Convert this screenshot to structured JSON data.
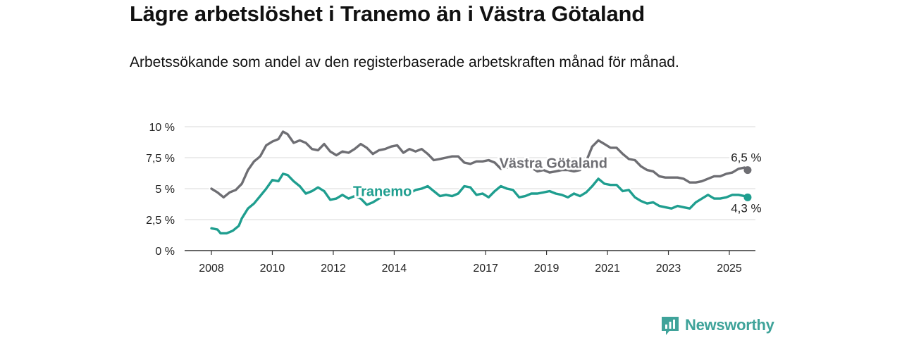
{
  "header": {
    "title": "Lägre arbetslöshet i Tranemo än i Västra Götaland",
    "subtitle": "Arbetssökande som andel av den registerbaserade arbetskraften månad för månad."
  },
  "logo": {
    "text": "Newsworthy",
    "icon": "newsworthy-logo-icon",
    "color": "#3fa39a"
  },
  "chart_data": {
    "type": "line",
    "title": "Lägre arbetslöshet i Tranemo än i Västra Götaland",
    "subtitle": "Arbetssökande som andel av den registerbaserade arbetskraften månad för månad.",
    "ylim": [
      0,
      10
    ],
    "yticks": [
      0,
      2.5,
      5,
      7.5,
      10
    ],
    "ytick_labels": [
      "0 %",
      "2,5 %",
      "5 %",
      "7,5 %",
      "10 %"
    ],
    "xlim": [
      2007.6,
      2025.9
    ],
    "xticks": [
      2008,
      2010,
      2012,
      2014,
      2017,
      2019,
      2021,
      2023,
      2025
    ],
    "xtick_labels": [
      "2008",
      "2010",
      "2012",
      "2014",
      "2017",
      "2019",
      "2021",
      "2023",
      "2025"
    ],
    "grid": "horizontal",
    "series": [
      {
        "name": "Västra Götaland",
        "color": "#6e6e73",
        "end_label": "6,5 %",
        "end_value": 6.5,
        "points": [
          [
            2008.0,
            5.0
          ],
          [
            2008.2,
            4.7
          ],
          [
            2008.4,
            4.3
          ],
          [
            2008.6,
            4.7
          ],
          [
            2008.8,
            4.9
          ],
          [
            2009.0,
            5.4
          ],
          [
            2009.2,
            6.5
          ],
          [
            2009.4,
            7.2
          ],
          [
            2009.6,
            7.6
          ],
          [
            2009.8,
            8.5
          ],
          [
            2010.0,
            8.8
          ],
          [
            2010.2,
            9.0
          ],
          [
            2010.35,
            9.6
          ],
          [
            2010.5,
            9.4
          ],
          [
            2010.7,
            8.7
          ],
          [
            2010.9,
            8.9
          ],
          [
            2011.1,
            8.7
          ],
          [
            2011.3,
            8.2
          ],
          [
            2011.5,
            8.1
          ],
          [
            2011.7,
            8.6
          ],
          [
            2011.9,
            8.0
          ],
          [
            2012.1,
            7.7
          ],
          [
            2012.3,
            8.0
          ],
          [
            2012.5,
            7.9
          ],
          [
            2012.7,
            8.2
          ],
          [
            2012.9,
            8.6
          ],
          [
            2013.1,
            8.3
          ],
          [
            2013.3,
            7.8
          ],
          [
            2013.5,
            8.1
          ],
          [
            2013.7,
            8.2
          ],
          [
            2013.9,
            8.4
          ],
          [
            2014.1,
            8.5
          ],
          [
            2014.3,
            7.9
          ],
          [
            2014.5,
            8.2
          ],
          [
            2014.7,
            8.0
          ],
          [
            2014.9,
            8.2
          ],
          [
            2015.1,
            7.8
          ],
          [
            2015.3,
            7.3
          ],
          [
            2015.5,
            7.4
          ],
          [
            2015.7,
            7.5
          ],
          [
            2015.9,
            7.6
          ],
          [
            2016.1,
            7.6
          ],
          [
            2016.3,
            7.1
          ],
          [
            2016.5,
            7.0
          ],
          [
            2016.7,
            7.2
          ],
          [
            2016.9,
            7.2
          ],
          [
            2017.1,
            7.3
          ],
          [
            2017.3,
            7.1
          ],
          [
            2017.5,
            6.6
          ],
          [
            2017.7,
            6.7
          ],
          [
            2017.9,
            6.8
          ],
          [
            2018.1,
            6.9
          ],
          [
            2018.3,
            7.0
          ],
          [
            2018.5,
            6.7
          ],
          [
            2018.7,
            6.4
          ],
          [
            2018.9,
            6.5
          ],
          [
            2019.1,
            6.3
          ],
          [
            2019.3,
            6.4
          ],
          [
            2019.5,
            6.5
          ],
          [
            2019.7,
            6.5
          ],
          [
            2019.9,
            6.4
          ],
          [
            2020.1,
            6.5
          ],
          [
            2020.3,
            7.2
          ],
          [
            2020.5,
            8.4
          ],
          [
            2020.7,
            8.9
          ],
          [
            2020.9,
            8.6
          ],
          [
            2021.1,
            8.3
          ],
          [
            2021.3,
            8.3
          ],
          [
            2021.5,
            7.8
          ],
          [
            2021.7,
            7.4
          ],
          [
            2021.9,
            7.3
          ],
          [
            2022.1,
            6.8
          ],
          [
            2022.3,
            6.5
          ],
          [
            2022.5,
            6.4
          ],
          [
            2022.7,
            6.0
          ],
          [
            2022.9,
            5.9
          ],
          [
            2023.1,
            5.9
          ],
          [
            2023.3,
            5.9
          ],
          [
            2023.5,
            5.8
          ],
          [
            2023.7,
            5.5
          ],
          [
            2023.9,
            5.5
          ],
          [
            2024.1,
            5.6
          ],
          [
            2024.3,
            5.8
          ],
          [
            2024.5,
            6.0
          ],
          [
            2024.7,
            6.0
          ],
          [
            2024.9,
            6.2
          ],
          [
            2025.1,
            6.3
          ],
          [
            2025.3,
            6.6
          ],
          [
            2025.5,
            6.7
          ],
          [
            2025.6,
            6.5
          ]
        ]
      },
      {
        "name": "Tranemo",
        "color": "#1f9e8f",
        "end_label": "4,3 %",
        "end_value": 4.3,
        "points": [
          [
            2008.0,
            1.8
          ],
          [
            2008.2,
            1.7
          ],
          [
            2008.3,
            1.4
          ],
          [
            2008.5,
            1.4
          ],
          [
            2008.7,
            1.6
          ],
          [
            2008.9,
            2.0
          ],
          [
            2009.0,
            2.6
          ],
          [
            2009.2,
            3.4
          ],
          [
            2009.4,
            3.8
          ],
          [
            2009.6,
            4.4
          ],
          [
            2009.8,
            5.0
          ],
          [
            2010.0,
            5.7
          ],
          [
            2010.2,
            5.6
          ],
          [
            2010.35,
            6.2
          ],
          [
            2010.5,
            6.1
          ],
          [
            2010.7,
            5.6
          ],
          [
            2010.9,
            5.2
          ],
          [
            2011.1,
            4.6
          ],
          [
            2011.3,
            4.8
          ],
          [
            2011.5,
            5.1
          ],
          [
            2011.7,
            4.8
          ],
          [
            2011.9,
            4.1
          ],
          [
            2012.1,
            4.2
          ],
          [
            2012.3,
            4.5
          ],
          [
            2012.5,
            4.2
          ],
          [
            2012.7,
            4.4
          ],
          [
            2012.9,
            4.2
          ],
          [
            2013.1,
            3.7
          ],
          [
            2013.3,
            3.9
          ],
          [
            2013.5,
            4.2
          ],
          [
            2013.7,
            4.5
          ],
          [
            2013.9,
            4.6
          ],
          [
            2014.1,
            4.7
          ],
          [
            2014.3,
            4.4
          ],
          [
            2014.5,
            4.6
          ],
          [
            2014.7,
            4.9
          ],
          [
            2014.9,
            5.0
          ],
          [
            2015.1,
            5.2
          ],
          [
            2015.3,
            4.8
          ],
          [
            2015.5,
            4.4
          ],
          [
            2015.7,
            4.5
          ],
          [
            2015.9,
            4.4
          ],
          [
            2016.1,
            4.6
          ],
          [
            2016.3,
            5.2
          ],
          [
            2016.5,
            5.1
          ],
          [
            2016.7,
            4.5
          ],
          [
            2016.9,
            4.6
          ],
          [
            2017.1,
            4.3
          ],
          [
            2017.3,
            4.8
          ],
          [
            2017.5,
            5.2
          ],
          [
            2017.7,
            5.0
          ],
          [
            2017.9,
            4.9
          ],
          [
            2018.1,
            4.3
          ],
          [
            2018.3,
            4.4
          ],
          [
            2018.5,
            4.6
          ],
          [
            2018.7,
            4.6
          ],
          [
            2018.9,
            4.7
          ],
          [
            2019.1,
            4.8
          ],
          [
            2019.3,
            4.6
          ],
          [
            2019.5,
            4.5
          ],
          [
            2019.7,
            4.3
          ],
          [
            2019.9,
            4.6
          ],
          [
            2020.1,
            4.4
          ],
          [
            2020.3,
            4.7
          ],
          [
            2020.5,
            5.2
          ],
          [
            2020.7,
            5.8
          ],
          [
            2020.9,
            5.4
          ],
          [
            2021.1,
            5.3
          ],
          [
            2021.3,
            5.3
          ],
          [
            2021.5,
            4.8
          ],
          [
            2021.7,
            4.9
          ],
          [
            2021.9,
            4.3
          ],
          [
            2022.1,
            4.0
          ],
          [
            2022.3,
            3.8
          ],
          [
            2022.5,
            3.9
          ],
          [
            2022.7,
            3.6
          ],
          [
            2022.9,
            3.5
          ],
          [
            2023.1,
            3.4
          ],
          [
            2023.3,
            3.6
          ],
          [
            2023.5,
            3.5
          ],
          [
            2023.7,
            3.4
          ],
          [
            2023.9,
            3.9
          ],
          [
            2024.1,
            4.2
          ],
          [
            2024.3,
            4.5
          ],
          [
            2024.5,
            4.2
          ],
          [
            2024.7,
            4.2
          ],
          [
            2024.9,
            4.3
          ],
          [
            2025.1,
            4.5
          ],
          [
            2025.3,
            4.5
          ],
          [
            2025.5,
            4.4
          ],
          [
            2025.6,
            4.3
          ]
        ]
      }
    ]
  }
}
